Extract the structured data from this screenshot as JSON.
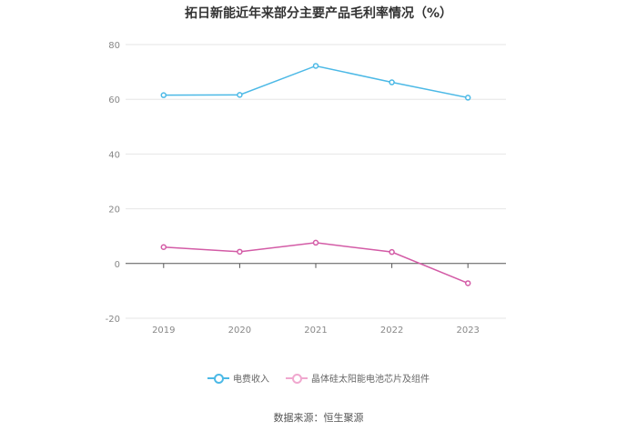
{
  "chart_data": {
    "type": "line",
    "title": "拓日新能近年来部分主要产品毛利率情况（%）",
    "categories": [
      "2019",
      "2020",
      "2021",
      "2022",
      "2023"
    ],
    "yticks": [
      "80",
      "60",
      "40",
      "20",
      "0",
      "-20"
    ],
    "ylim": [
      -20,
      80
    ],
    "grid": true,
    "legend_position": "bottom",
    "series": [
      {
        "name": "电费收入",
        "color": "#4cb9e6",
        "values": [
          61.5,
          61.6,
          72.2,
          66.2,
          60.6
        ]
      },
      {
        "name": "晶体硅太阳能电池芯片及组件",
        "color": "#d35ba6",
        "values": [
          6.0,
          4.3,
          7.6,
          4.2,
          -7.2
        ]
      }
    ]
  },
  "source": "数据来源：恒生聚源"
}
